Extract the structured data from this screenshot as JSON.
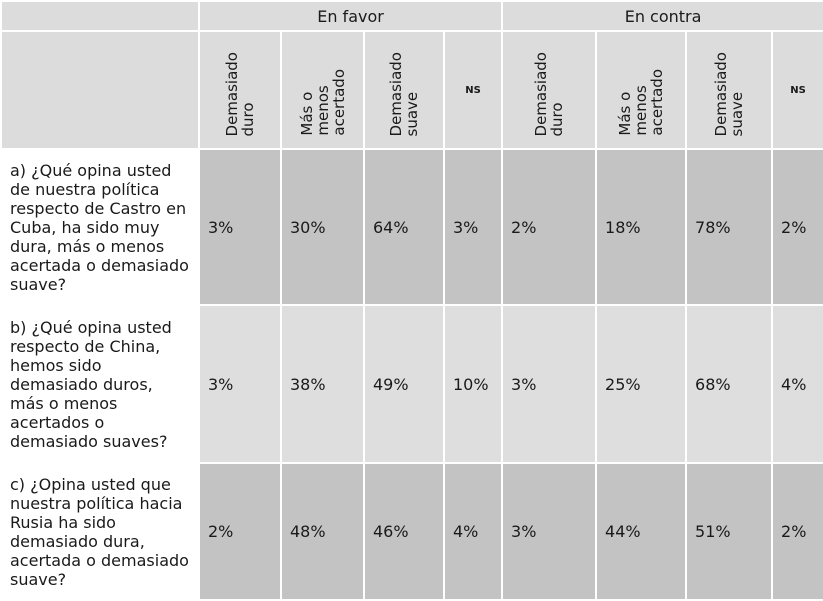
{
  "groups": {
    "en_favor": "En favor",
    "en_contra": "En contra"
  },
  "subheaders": {
    "duro": "Demasiado\nduro",
    "acertado": "Más o\nmenos\nacertado",
    "suave": "Demasiado\nsuave",
    "ns": "NS"
  },
  "rows": [
    {
      "question": "a) ¿Qué opina usted de nuestra política respecto de Castro en Cuba, ha sido muy dura, más o menos acertada o demasiado suave?",
      "values": [
        "3%",
        "30%",
        "64%",
        "3%",
        "2%",
        "18%",
        "78%",
        "2%"
      ]
    },
    {
      "question": "b) ¿Qué opina usted respecto de China, hemos sido demasiado duros, más o menos acertados o demasiado suaves?",
      "values": [
        "3%",
        "38%",
        "49%",
        "10%",
        "3%",
        "25%",
        "68%",
        "4%"
      ]
    },
    {
      "question": "c) ¿Opina usted que nuestra política hacia Rusia ha sido demasiado dura, acertada o demasiado suave?",
      "values": [
        "2%",
        "48%",
        "46%",
        "4%",
        "3%",
        "44%",
        "51%",
        "2%"
      ]
    }
  ]
}
